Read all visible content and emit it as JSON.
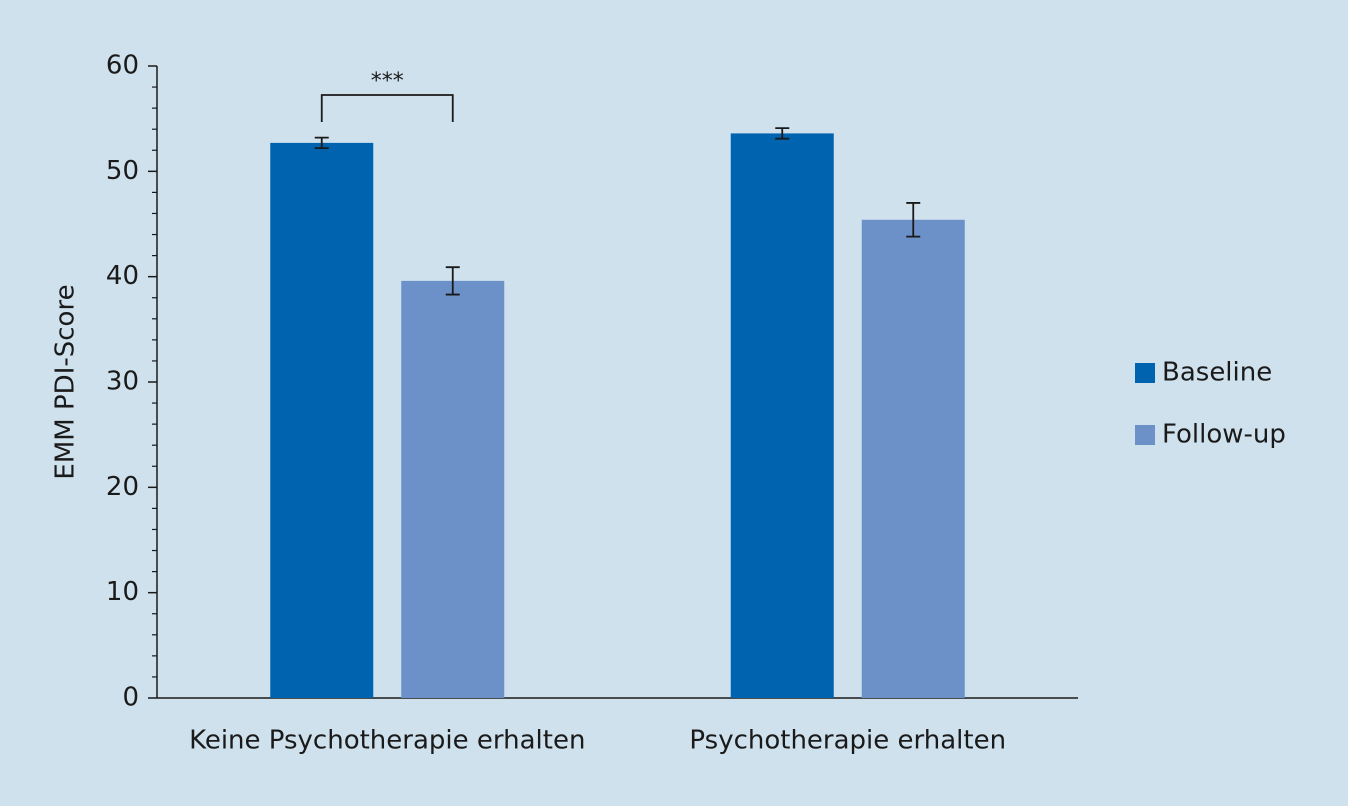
{
  "chart_data": {
    "type": "bar",
    "y_label": "EMM PDI-Score",
    "categories": [
      "Keine Psychotherapie erhalten",
      "Psychotherapie erhalten"
    ],
    "series": [
      {
        "name": "Baseline",
        "color": "#0063af",
        "values": [
          52.7,
          53.6
        ],
        "errors": [
          0.5,
          0.5
        ]
      },
      {
        "name": "Follow-up",
        "color": "#6b91c8",
        "values": [
          39.6,
          45.4
        ],
        "errors": [
          1.3,
          1.6
        ]
      }
    ],
    "ylim": [
      0,
      60
    ],
    "yticks": [
      0,
      10,
      20,
      30,
      40,
      50,
      60
    ],
    "minor_yticks": [
      2,
      4,
      6,
      8,
      12,
      14,
      16,
      18,
      22,
      24,
      26,
      28,
      32,
      34,
      36,
      38,
      42,
      44,
      46,
      48,
      52,
      54,
      56,
      58
    ],
    "annotation": {
      "text": "***",
      "category": 0
    },
    "legend": "right"
  }
}
